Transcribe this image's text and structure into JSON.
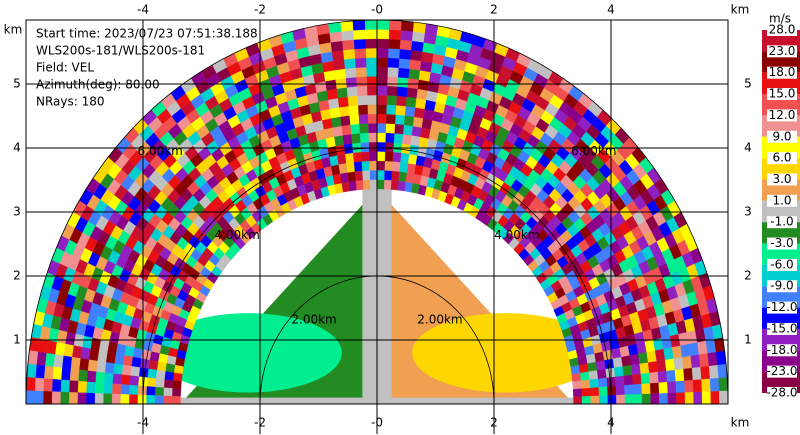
{
  "chart_data": {
    "type": "ppi",
    "info": [
      "Start time: 2023/07/23 07:51:38.188",
      "WLS200s-181/WLS200s-181",
      "Field: VEL",
      "Azimuth(deg): 80.00",
      "NRays: 180"
    ],
    "xlabel": "km",
    "ylabel": "km",
    "xlim": [
      -6,
      6
    ],
    "ylim": [
      0,
      6
    ],
    "xticks": [
      -4,
      -2,
      {
        "value": 0,
        "label": "-0"
      },
      2,
      4
    ],
    "yticks": [
      1,
      2,
      3,
      4,
      5
    ],
    "grid": true,
    "rings": [
      {
        "value": 2,
        "label": "2.00km"
      },
      {
        "value": 4,
        "label": "4.00km"
      },
      {
        "value": 6,
        "label": "6.00km"
      }
    ],
    "colorbar": {
      "title": "m/s",
      "ticks": [
        {
          "value": 28,
          "label": "28.0"
        },
        {
          "value": 23,
          "label": "23.0"
        },
        {
          "value": 18,
          "label": "18.0"
        },
        {
          "value": 15,
          "label": "15.0"
        },
        {
          "value": 12,
          "label": "12.0"
        },
        {
          "value": 9,
          "label": "9.0"
        },
        {
          "value": 6,
          "label": "6.0"
        },
        {
          "value": 3,
          "label": "3.0"
        },
        {
          "value": 1,
          "label": "1.0"
        },
        {
          "value": -1,
          "label": "-1.0"
        },
        {
          "value": -3,
          "label": "-3.0"
        },
        {
          "value": -6,
          "label": "-6.0"
        },
        {
          "value": -9,
          "label": "-9.0"
        },
        {
          "value": -12,
          "label": "-12.0"
        },
        {
          "value": -15,
          "label": "-15.0"
        },
        {
          "value": -18,
          "label": "-18.0"
        },
        {
          "value": -23,
          "label": "-23.0"
        },
        {
          "value": -28,
          "label": "-28.0"
        }
      ],
      "colors": [
        "#c8102e",
        "#8b0000",
        "#e81010",
        "#f05050",
        "#f09090",
        "#ffff00",
        "#ffd700",
        "#f0a050",
        "#c0c0c0",
        "#228b22",
        "#00ee90",
        "#00d0d0",
        "#4080ff",
        "#0000ff",
        "#9020c0",
        "#8b008b",
        "#8b0045"
      ]
    }
  }
}
